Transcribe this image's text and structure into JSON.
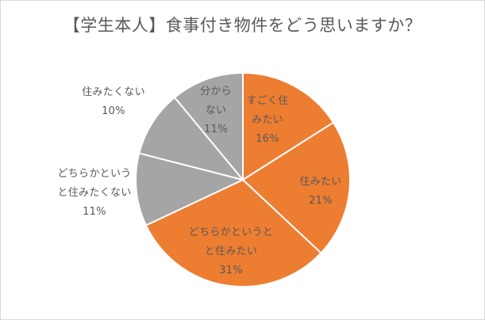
{
  "chart_data": {
    "type": "pie",
    "title": "【学生本人】食事付き物件をどう思いますか？",
    "start_angle_deg": 0,
    "direction": "clockwise",
    "slices": [
      {
        "label_lines": [
          "すごく住",
          "みたい"
        ],
        "value": 16,
        "value_label": "16%",
        "color": "#ed7d31",
        "label_color": "#595959",
        "label_position": "inside"
      },
      {
        "label_lines": [
          "住みたい"
        ],
        "value": 21,
        "value_label": "21%",
        "color": "#ed7d31",
        "label_color": "#595959",
        "label_position": "inside"
      },
      {
        "label_lines": [
          "どちらかというと",
          "と住みたい"
        ],
        "value": 31,
        "value_label": "31%",
        "color": "#ed7d31",
        "label_color": "#595959",
        "label_position": "inside"
      },
      {
        "label_lines": [
          "どちらかという",
          "と住みたくない"
        ],
        "value": 11,
        "value_label": "11%",
        "color": "#a5a5a5",
        "label_color": "#595959",
        "label_position": "outside"
      },
      {
        "label_lines": [
          "住みたくない"
        ],
        "value": 10,
        "value_label": "10%",
        "color": "#a5a5a5",
        "label_color": "#595959",
        "label_position": "outside"
      },
      {
        "label_lines": [
          "分から",
          "ない"
        ],
        "value": 11,
        "value_label": "11%",
        "color": "#a5a5a5",
        "label_color": "#595959",
        "label_position": "inside"
      }
    ],
    "legend": "none"
  }
}
